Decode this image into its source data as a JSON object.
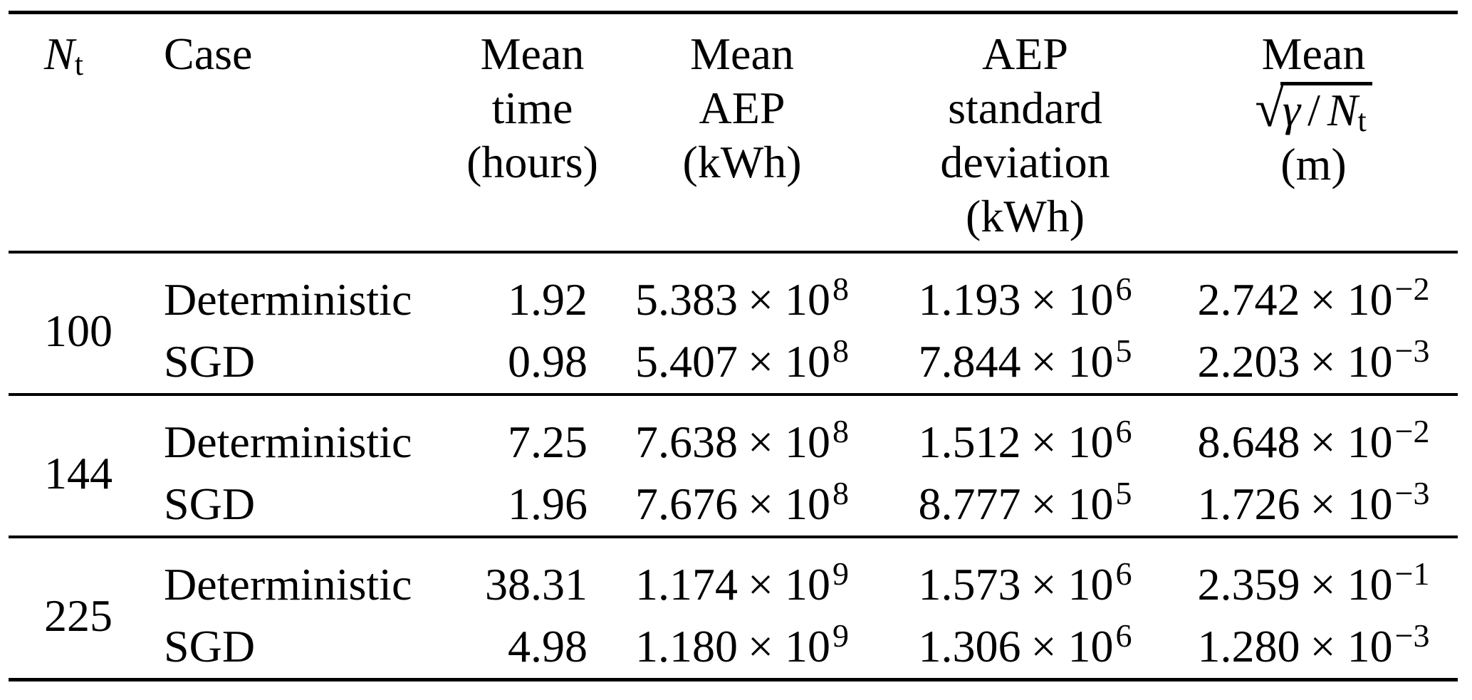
{
  "table": {
    "labels": {
      "x10": "× 10"
    },
    "header": {
      "nt": {
        "base": "N",
        "sub": "t"
      },
      "case": "Case",
      "time_l1": "Mean",
      "time_l2": "time",
      "time_l3": "(hours)",
      "aep_l1": "Mean",
      "aep_l2": "AEP",
      "aep_l3": "(kWh)",
      "std_l1": "AEP",
      "std_l2": "standard",
      "std_l3": "deviation",
      "std_l4": "(kWh)",
      "conv_l1": "Mean",
      "conv_radical": "√",
      "conv_gamma": "γ",
      "conv_slash": "/",
      "conv_base": "N",
      "conv_sub": "t",
      "conv_unit": "(m)"
    },
    "groups": [
      {
        "nt": "100",
        "rows": [
          {
            "case": "Deterministic",
            "time": "1.92",
            "aep": {
              "m": "5.383",
              "e": "8"
            },
            "std": {
              "m": "1.193",
              "e": "6"
            },
            "conv": {
              "m": "2.742",
              "e": "−2"
            }
          },
          {
            "case": "SGD",
            "time": "0.98",
            "aep": {
              "m": "5.407",
              "e": "8"
            },
            "std": {
              "m": "7.844",
              "e": "5"
            },
            "conv": {
              "m": "2.203",
              "e": "−3"
            }
          }
        ]
      },
      {
        "nt": "144",
        "rows": [
          {
            "case": "Deterministic",
            "time": "7.25",
            "aep": {
              "m": "7.638",
              "e": "8"
            },
            "std": {
              "m": "1.512",
              "e": "6"
            },
            "conv": {
              "m": "8.648",
              "e": "−2"
            }
          },
          {
            "case": "SGD",
            "time": "1.96",
            "aep": {
              "m": "7.676",
              "e": "8"
            },
            "std": {
              "m": "8.777",
              "e": "5"
            },
            "conv": {
              "m": "1.726",
              "e": "−3"
            }
          }
        ]
      },
      {
        "nt": "225",
        "rows": [
          {
            "case": "Deterministic",
            "time": "38.31",
            "aep": {
              "m": "1.174",
              "e": "9"
            },
            "std": {
              "m": "1.573",
              "e": "6"
            },
            "conv": {
              "m": "2.359",
              "e": "−1"
            }
          },
          {
            "case": "SGD",
            "time": "4.98",
            "aep": {
              "m": "1.180",
              "e": "9"
            },
            "std": {
              "m": "1.306",
              "e": "6"
            },
            "conv": {
              "m": "1.280",
              "e": "−3"
            }
          }
        ]
      }
    ]
  }
}
